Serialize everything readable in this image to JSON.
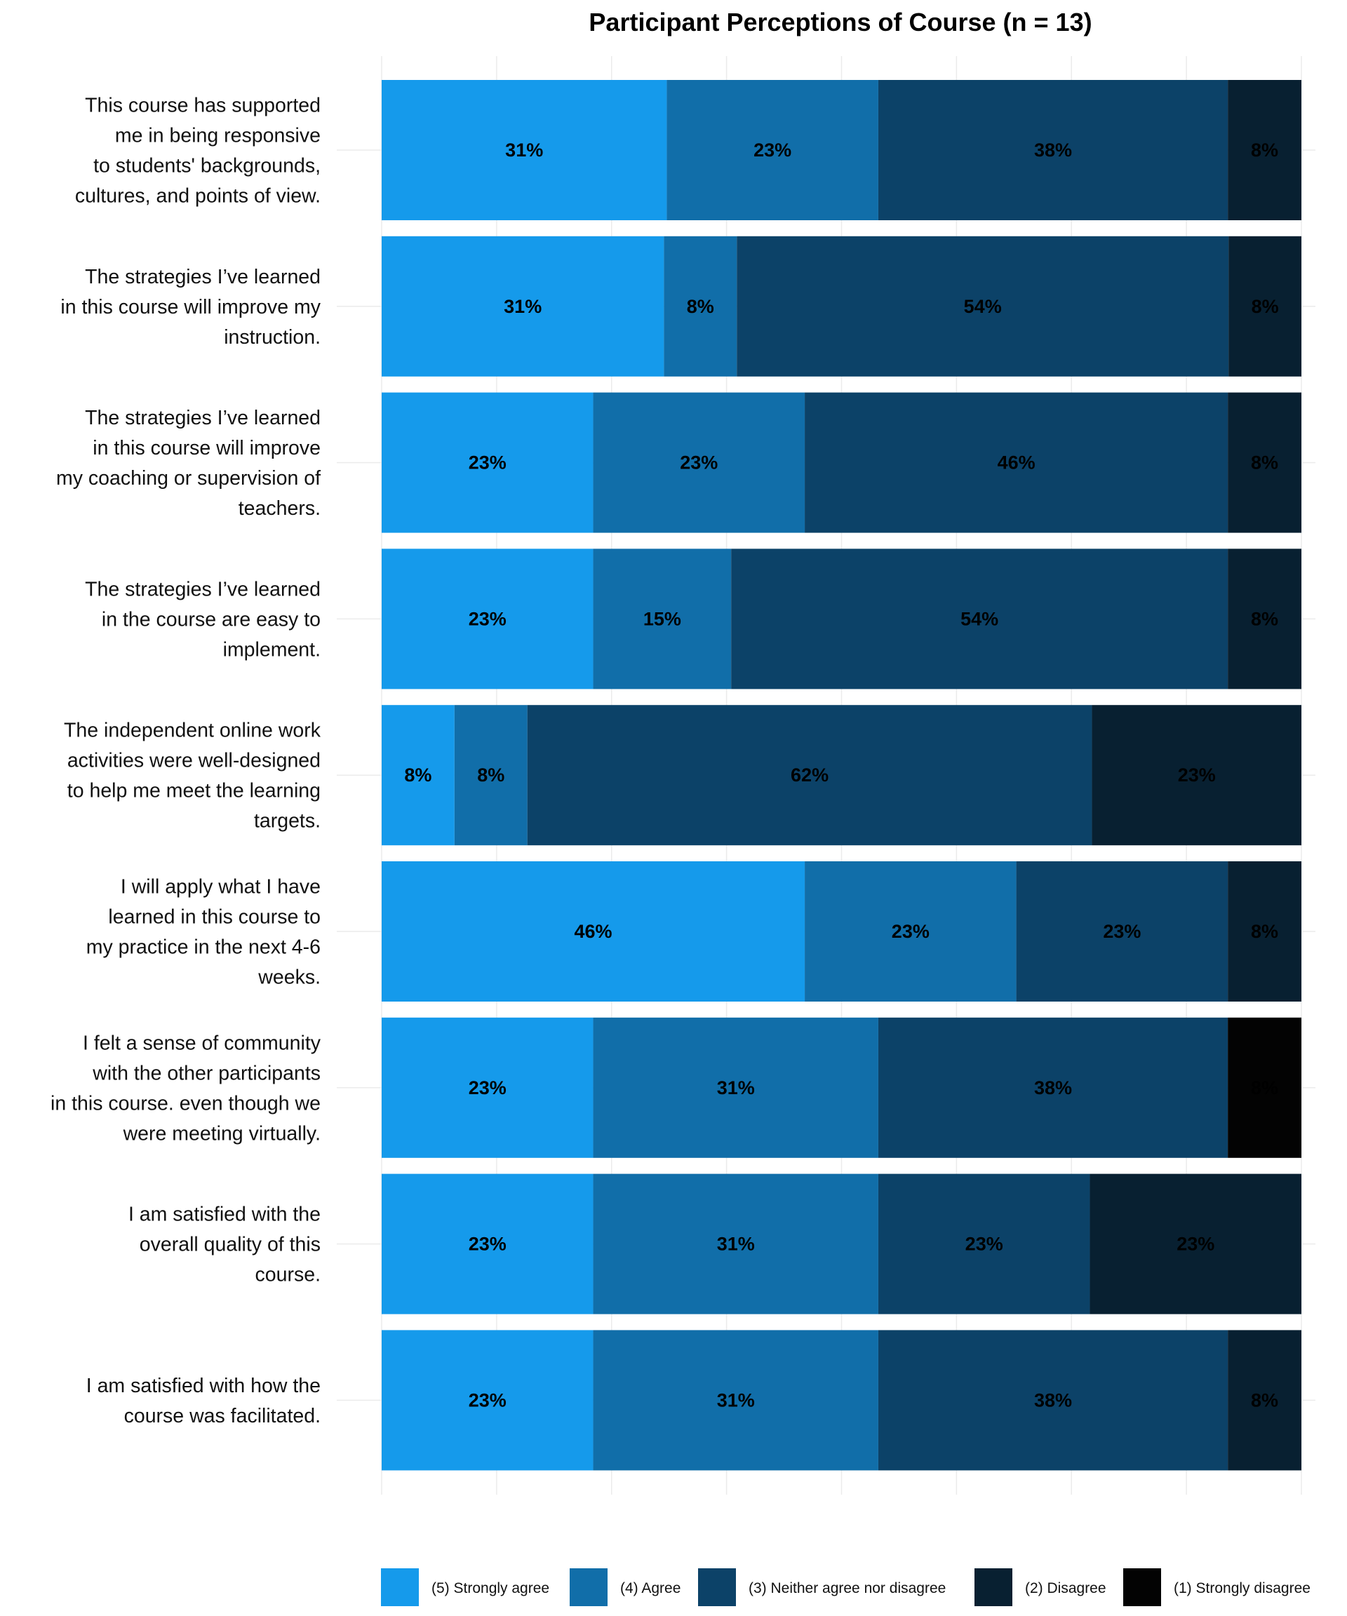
{
  "chart_data": {
    "type": "bar",
    "orientation": "horizontal",
    "stacked": true,
    "title": "Participant Perceptions of Course (n = 13)",
    "xlabel": "",
    "ylabel": "",
    "xlim": [
      0,
      100
    ],
    "grid": true,
    "legend_position": "bottom",
    "categories": [
      "This course has supported me in being responsive to students' backgrounds, cultures, and points of view.",
      "The strategies I’ve learned in this course will improve my instruction.",
      "The strategies I’ve learned in this course will improve my coaching or supervision of teachers.",
      "The strategies I’ve learned in the course are easy to implement.",
      "The independent online work activities were well-designed to help me meet the learning targets.",
      "I will apply what I have learned in this course to my practice in the next 4-6 weeks.",
      "I felt a sense of community with the other participants in this course. even though we were meeting virtually.",
      "I am satisfied with the overall quality of this course.",
      "I am satisfied with how the course was facilitated."
    ],
    "category_lines": [
      [
        "This course has supported",
        "me in being responsive",
        "to students' backgrounds,",
        "cultures, and points of view."
      ],
      [
        "The strategies I’ve learned",
        "in this course will improve my",
        "instruction."
      ],
      [
        "The strategies I’ve learned",
        "in this course will improve",
        "my coaching or supervision of",
        "teachers."
      ],
      [
        "The strategies I’ve learned",
        "in the course are easy to",
        "implement."
      ],
      [
        "The independent online work",
        "activities were well-designed",
        "to help me meet the learning",
        "targets."
      ],
      [
        "I will apply what I have",
        "learned in this course to",
        "my practice in the next 4-6",
        "weeks."
      ],
      [
        "I felt a sense of community",
        "with the other participants",
        "in this course. even though we",
        "were meeting virtually."
      ],
      [
        "I am satisfied with the",
        "overall quality of this",
        "course."
      ],
      [
        "I am satisfied with how the",
        "course was facilitated."
      ]
    ],
    "series": [
      {
        "name": "(5) Strongly agree",
        "color": "#159aeb",
        "values": [
          31,
          31,
          23,
          23,
          8,
          46,
          23,
          23,
          23
        ],
        "labels": [
          "31%",
          "31%",
          "23%",
          "23%",
          "8%",
          "46%",
          "23%",
          "23%",
          "23%"
        ]
      },
      {
        "name": "(4) Agree",
        "color": "#116ea9",
        "values": [
          23,
          8,
          23,
          15,
          8,
          23,
          31,
          31,
          31
        ],
        "labels": [
          "23%",
          "8%",
          "23%",
          "15%",
          "8%",
          "23%",
          "31%",
          "31%",
          "31%"
        ]
      },
      {
        "name": "(3) Neither agree nor disagree",
        "color": "#0c4268",
        "values": [
          38,
          54,
          46,
          54,
          62,
          23,
          38,
          23,
          38
        ],
        "labels": [
          "38%",
          "54%",
          "46%",
          "54%",
          "62%",
          "23%",
          "38%",
          "23%",
          "38%"
        ]
      },
      {
        "name": "(2) Disagree",
        "color": "#082031",
        "values": [
          8,
          8,
          8,
          8,
          23,
          8,
          0,
          23,
          8
        ],
        "labels": [
          "8%",
          "8%",
          "8%",
          "8%",
          "23%",
          "8%",
          "",
          "23%",
          "8%"
        ]
      },
      {
        "name": "(1) Strongly disagree",
        "color": "#030303",
        "values": [
          0,
          0,
          0,
          0,
          0,
          0,
          8,
          0,
          0
        ],
        "labels": [
          "",
          "",
          "",
          "",
          "",
          "",
          "8%",
          "",
          ""
        ]
      }
    ]
  }
}
